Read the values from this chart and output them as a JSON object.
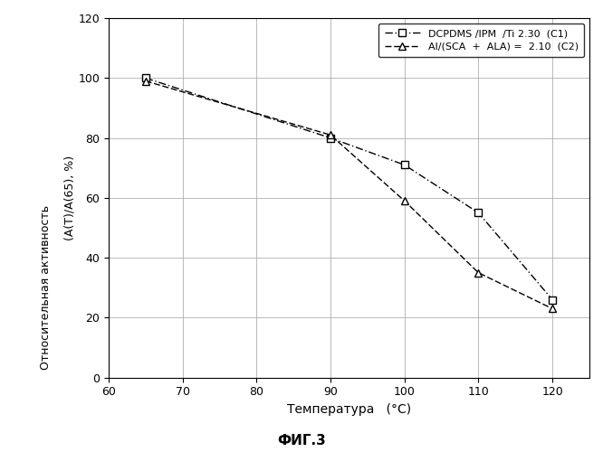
{
  "series1": {
    "x": [
      65,
      90,
      100,
      110,
      120
    ],
    "y": [
      100,
      80,
      71,
      55,
      26
    ],
    "label": "DCPDMS /IPM  /Ti 2.30  (C1)",
    "color": "#000000",
    "marker": "s",
    "markersize": 6,
    "linewidth": 1.0
  },
  "series2": {
    "x": [
      65,
      90,
      100,
      110,
      120
    ],
    "y": [
      99,
      81,
      59,
      35,
      23
    ],
    "label": "Al/(SCA  +  ALA) =  2.10  (C2)",
    "color": "#000000",
    "marker": "^",
    "markersize": 6,
    "linewidth": 1.0
  },
  "xlabel": "Температура   (°C)",
  "ylabel_top": "(A(T)/A(65), %)",
  "ylabel_bottom": "Относительная активность",
  "title_bottom": "ФИГ.3",
  "xlim": [
    60,
    125
  ],
  "ylim": [
    0,
    120
  ],
  "xticks": [
    60,
    70,
    80,
    90,
    100,
    110,
    120
  ],
  "yticks": [
    0,
    20,
    40,
    60,
    80,
    100,
    120
  ],
  "background_color": "#ffffff",
  "figsize": [
    6.66,
    5.0
  ],
  "dpi": 100
}
